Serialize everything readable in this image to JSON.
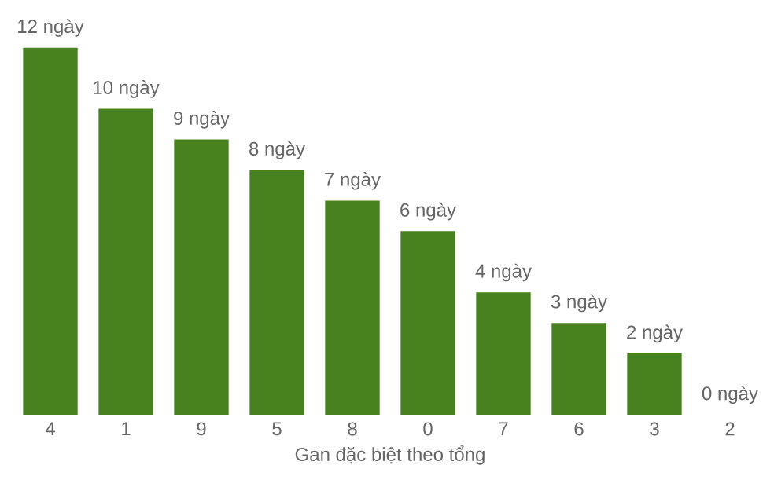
{
  "chart_data": {
    "type": "bar",
    "xlabel": "Gan đặc biệt theo tổng",
    "categories": [
      "4",
      "1",
      "9",
      "5",
      "8",
      "0",
      "7",
      "6",
      "3",
      "2"
    ],
    "values": [
      12,
      10,
      9,
      8,
      7,
      6,
      4,
      3,
      2,
      0
    ],
    "value_labels": [
      "12 ngày",
      "10 ngày",
      "9 ngày",
      "8 ngày",
      "7 ngày",
      "6 ngày",
      "4 ngày",
      "3 ngày",
      "2 ngày",
      "0 ngày"
    ],
    "color": "#48821f"
  }
}
